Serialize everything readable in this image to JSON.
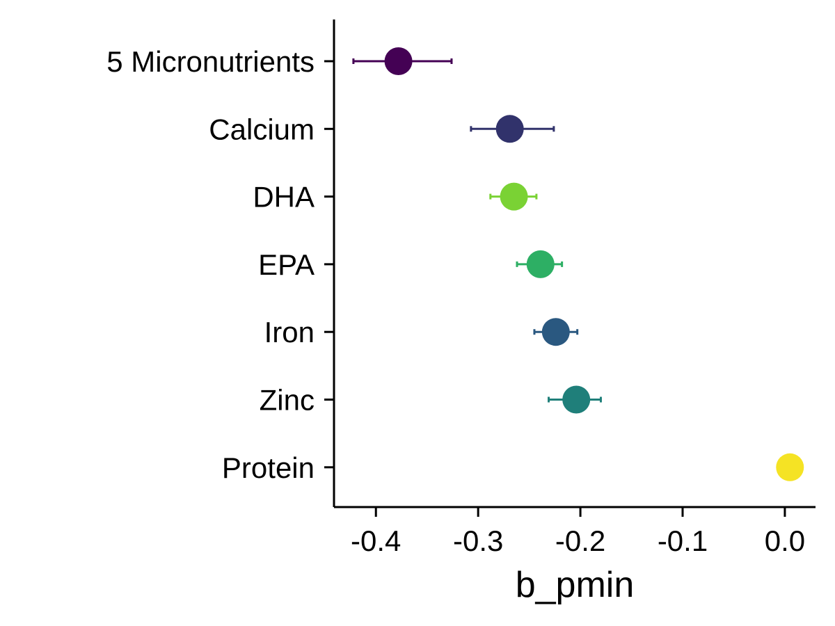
{
  "chart_data": {
    "type": "scatter",
    "title": "",
    "xlabel": "b_pmin",
    "ylabel": "",
    "xlim": [
      -0.441,
      0.03
    ],
    "x_ticks": [
      -0.4,
      -0.3,
      -0.2,
      -0.1,
      0.0
    ],
    "x_tick_labels": [
      "-0.4",
      "-0.3",
      "-0.2",
      "-0.1",
      "0.0"
    ],
    "categories": [
      "5 Micronutrients",
      "Calcium",
      "DHA",
      "EPA",
      "Iron",
      "Zinc",
      "Protein"
    ],
    "points": [
      {
        "category": "5 Micronutrients",
        "value": -0.378,
        "lower": -0.422,
        "upper": -0.326,
        "color": "#440154"
      },
      {
        "category": "Calcium",
        "value": -0.269,
        "lower": -0.307,
        "upper": -0.226,
        "color": "#31326B"
      },
      {
        "category": "DHA",
        "value": -0.265,
        "lower": -0.288,
        "upper": -0.243,
        "color": "#7AD234"
      },
      {
        "category": "EPA",
        "value": -0.239,
        "lower": -0.262,
        "upper": -0.218,
        "color": "#2DAF64"
      },
      {
        "category": "Iron",
        "value": -0.224,
        "lower": -0.245,
        "upper": -0.203,
        "color": "#2A5880"
      },
      {
        "category": "Zinc",
        "value": -0.204,
        "lower": -0.231,
        "upper": -0.18,
        "color": "#1F7F7A"
      },
      {
        "category": "Protein",
        "value": 0.005,
        "lower": 0.005,
        "upper": 0.005,
        "color": "#F5E324"
      }
    ],
    "grid": false,
    "legend": "none"
  }
}
